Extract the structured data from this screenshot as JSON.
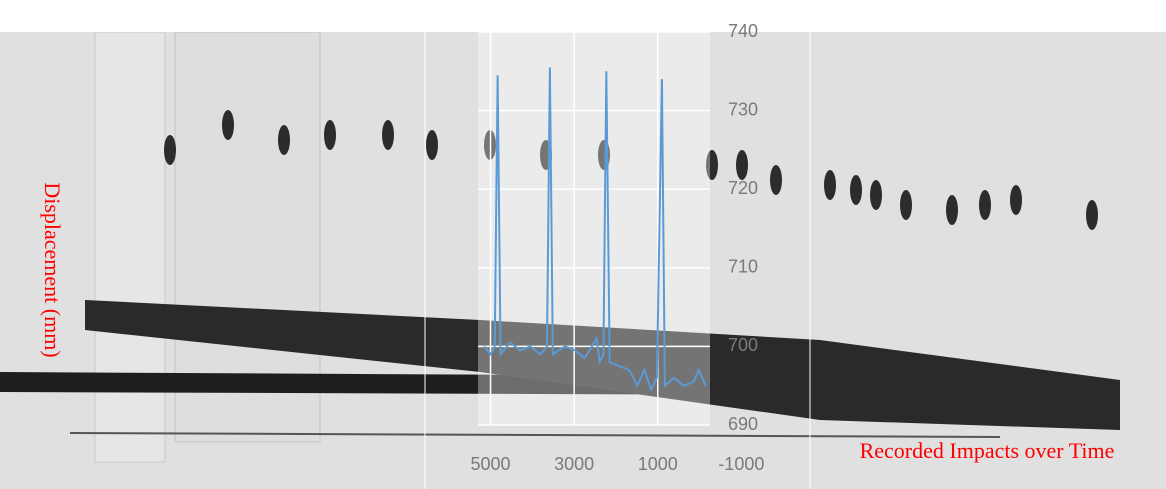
{
  "chart_data": {
    "type": "line",
    "x_label": "Recorded Impacts over Time",
    "y_label": "Displacement (mm)",
    "x": [
      5150,
      5000,
      4900,
      4830,
      4760,
      4530,
      4290,
      4050,
      3810,
      3650,
      3580,
      3510,
      3220,
      2980,
      2750,
      2460,
      2390,
      2300,
      2230,
      2150,
      1920,
      1680,
      1490,
      1320,
      1160,
      1020,
      900,
      830,
      610,
      380,
      140,
      20,
      -150
    ],
    "series": [
      {
        "color": "#5b9bd5",
        "values": [
          700,
          699,
          700,
          734.5,
          699,
          700.5,
          699.5,
          700,
          699,
          700,
          735.5,
          699,
          700,
          699.5,
          698.5,
          701,
          698,
          699,
          735,
          698,
          697.5,
          697,
          695,
          697,
          694.5,
          696,
          734,
          695,
          696,
          695,
          695.5,
          697,
          695
        ]
      }
    ],
    "xlim": [
      5300,
      -250
    ],
    "xticks": [
      5000,
      3000,
      1000,
      -1000
    ],
    "ylim": [
      690,
      740
    ],
    "yticks": [
      690,
      700,
      710,
      720,
      730,
      740
    ],
    "grid": true
  }
}
